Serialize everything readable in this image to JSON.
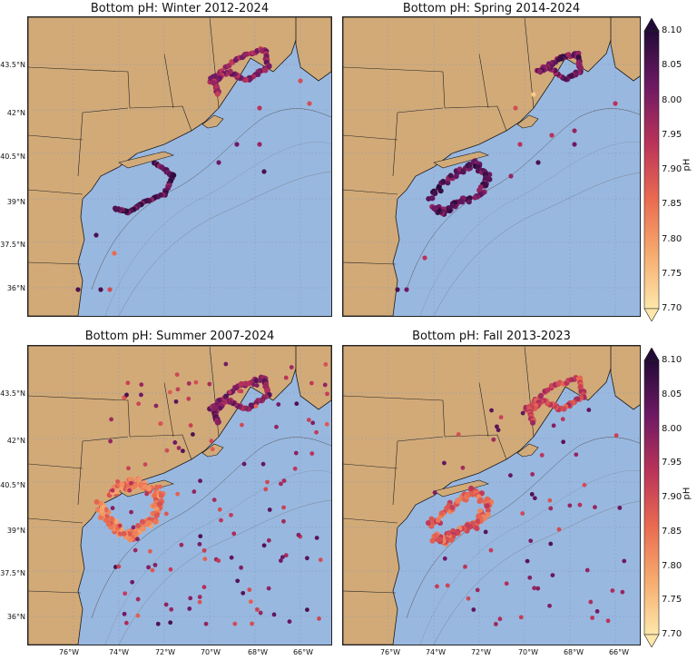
{
  "panels": [
    {
      "title": "Bottom pH: Winter 2012-2024",
      "show_y": true,
      "show_x": false
    },
    {
      "title": "Bottom pH: Spring 2014-2024",
      "show_y": false,
      "show_x": false
    },
    {
      "title": "Bottom pH: Summer 2007-2024",
      "show_y": true,
      "show_x": true
    },
    {
      "title": "Bottom pH: Fall 2013-2023",
      "show_y": false,
      "show_x": true
    }
  ],
  "lat_labels": [
    "43.5°N",
    "42°N",
    "40.5°N",
    "39°N",
    "37.5°N",
    "36°N"
  ],
  "lon_labels": [
    "76°W",
    "74°W",
    "72°W",
    "70°W",
    "68°W",
    "66°W"
  ],
  "colorbar": {
    "label": "pH",
    "ticks": [
      "8.10",
      "8.05",
      "8.00",
      "7.95",
      "7.90",
      "7.85",
      "7.80",
      "7.75",
      "7.70"
    ],
    "vmin": 7.7,
    "vmax": 8.1
  },
  "colors": {
    "ocean": "#99b8e0",
    "land": "#d2aa78",
    "coast": "#1a1a1a",
    "high_ph": "#2a0a40",
    "low_ph": "#fde6a8"
  }
}
